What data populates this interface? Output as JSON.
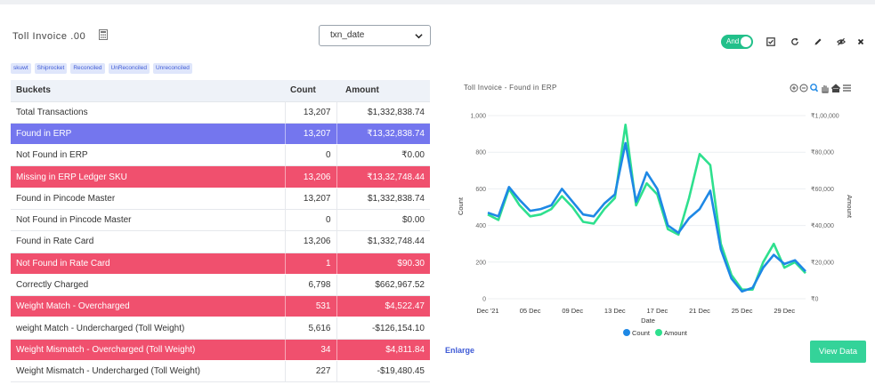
{
  "header": {
    "report_title": "Toll Invoice .00",
    "date_select_value": "txn_date",
    "toggle_label": "And"
  },
  "tags": [
    "skuwt",
    "Shiprocket",
    "Reconciled",
    "UnReconciled",
    "Unreconciled"
  ],
  "table": {
    "columns": [
      "Buckets",
      "Count",
      "Amount"
    ],
    "rows": [
      {
        "bucket": "Total Transactions",
        "count": "13,207",
        "amount": "$1,332,838.74",
        "style": "normal"
      },
      {
        "bucket": "Found in ERP",
        "count": "13,207",
        "amount": "₹13,32,838.74",
        "style": "purple"
      },
      {
        "bucket": "Not Found in ERP",
        "count": "0",
        "amount": "₹0.00",
        "style": "normal"
      },
      {
        "bucket": "Missing in ERP Ledger SKU",
        "count": "13,206",
        "amount": "₹13,32,748.44",
        "style": "red"
      },
      {
        "bucket": "Found in Pincode Master",
        "count": "13,207",
        "amount": "$1,332,838.74",
        "style": "normal"
      },
      {
        "bucket": "Not Found in Pincode Master",
        "count": "0",
        "amount": "$0.00",
        "style": "normal"
      },
      {
        "bucket": "Found in Rate Card",
        "count": "13,206",
        "amount": "$1,332,748.44",
        "style": "normal"
      },
      {
        "bucket": "Not Found in Rate Card",
        "count": "1",
        "amount": "$90.30",
        "style": "red"
      },
      {
        "bucket": "Correctly Charged",
        "count": "6,798",
        "amount": "$662,967.52",
        "style": "normal"
      },
      {
        "bucket": "Weight Match - Overcharged",
        "count": "531",
        "amount": "$4,522.47",
        "style": "red"
      },
      {
        "bucket": "weight Match - Undercharged (Toll Weight)",
        "count": "5,616",
        "amount": "-$126,154.10",
        "style": "normal"
      },
      {
        "bucket": "Weight Mismatch - Overcharged (Toll Weight)",
        "count": "34",
        "amount": "$4,811.84",
        "style": "red"
      },
      {
        "bucket": "Weight Mismatch - Undercharged (Toll Weight)",
        "count": "227",
        "amount": "-$19,480.45",
        "style": "normal"
      }
    ]
  },
  "toolbar_icons": [
    "checkbox-icon",
    "refresh-icon",
    "edit-icon",
    "hide-icon",
    "close-icon"
  ],
  "chart_tools_icons": [
    "zoom-in-icon",
    "zoom-out-icon",
    "zoom-select-icon",
    "pan-icon",
    "home-icon",
    "menu-icon"
  ],
  "chart_data": {
    "type": "line",
    "title": "Toll Invoice - Found in ERP",
    "xlabel": "Date",
    "ylabel": "Count",
    "y2label": "Amount",
    "x_tick_labels": [
      "Dec '21",
      "05 Dec",
      "09 Dec",
      "13 Dec",
      "17 Dec",
      "21 Dec",
      "25 Dec",
      "29 Dec"
    ],
    "y_tick_labels": [
      "0",
      "200",
      "400",
      "600",
      "800",
      "1,000"
    ],
    "y2_tick_labels": [
      "₹0",
      "₹20,000",
      "₹40,000",
      "₹60,000",
      "₹80,000",
      "₹1,00,000"
    ],
    "ylim": [
      0,
      1000
    ],
    "y2lim": [
      0,
      100000
    ],
    "x": [
      "2021-12-01",
      "2021-12-02",
      "2021-12-03",
      "2021-12-04",
      "2021-12-05",
      "2021-12-06",
      "2021-12-07",
      "2021-12-08",
      "2021-12-09",
      "2021-12-10",
      "2021-12-11",
      "2021-12-12",
      "2021-12-13",
      "2021-12-14",
      "2021-12-15",
      "2021-12-16",
      "2021-12-17",
      "2021-12-18",
      "2021-12-19",
      "2021-12-20",
      "2021-12-21",
      "2021-12-22",
      "2021-12-23",
      "2021-12-24",
      "2021-12-25",
      "2021-12-26",
      "2021-12-27",
      "2021-12-28",
      "2021-12-29",
      "2021-12-30",
      "2021-12-31"
    ],
    "series": [
      {
        "name": "Count",
        "axis": "left",
        "color": "#1e88e5",
        "values": [
          470,
          450,
          610,
          540,
          480,
          490,
          510,
          600,
          530,
          460,
          450,
          520,
          570,
          850,
          530,
          690,
          600,
          400,
          360,
          440,
          490,
          590,
          270,
          110,
          40,
          60,
          170,
          240,
          190,
          210,
          150
        ]
      },
      {
        "name": "Amount",
        "axis": "right",
        "color": "#2ee08e",
        "values": [
          46000,
          43000,
          60000,
          51000,
          45000,
          46000,
          49000,
          56000,
          50000,
          42000,
          41000,
          49000,
          55000,
          95000,
          51000,
          63000,
          57000,
          38000,
          35000,
          55000,
          79000,
          73000,
          30000,
          13000,
          5000,
          5000,
          20000,
          30000,
          17000,
          20000,
          14000
        ]
      }
    ],
    "legend_position": "bottom-center",
    "grid": "horizontal"
  },
  "actions": {
    "enlarge_label": "Enlarge",
    "view_data_label": "View Data"
  }
}
